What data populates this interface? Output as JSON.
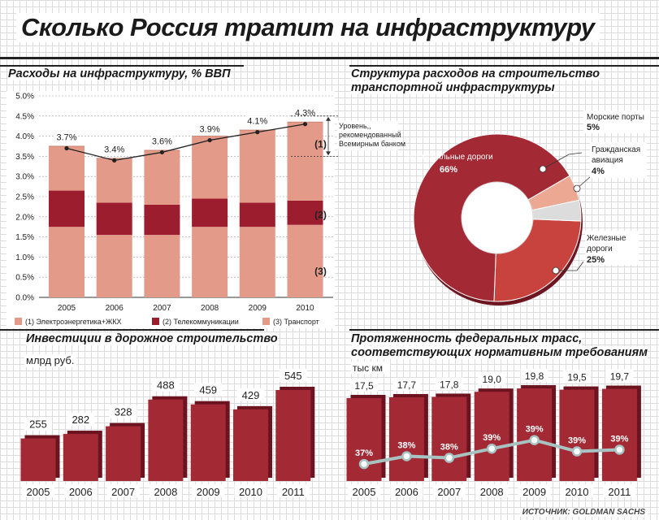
{
  "title": "Сколько Россия тратит на инфраструктуру",
  "source": "ИСТОЧНИК: GOLDMAN SACHS",
  "colors": {
    "transport": "#e49a88",
    "telecom": "#9c1e2e",
    "dark_red": "#a32a35",
    "red": "#c8433e",
    "light_salmon": "#eda894",
    "pale": "#dcdcdc",
    "line": "#a8c2c2"
  },
  "chart_data": [
    {
      "type": "bar",
      "stacked": true,
      "title": "Расходы на инфраструктуру, % ВВП",
      "categories": [
        "2005",
        "2006",
        "2007",
        "2008",
        "2009",
        "2010"
      ],
      "ylim": [
        0,
        5
      ],
      "yticks": [
        "0.0%",
        "0.5%",
        "1.0%",
        "1.5%",
        "2.0%",
        "2.5%",
        "3.0%",
        "3.5%",
        "4.0%",
        "4.5%",
        "5.0%"
      ],
      "series": [
        {
          "name": "(3) Транспорт",
          "values": [
            1.75,
            1.55,
            1.55,
            1.75,
            1.75,
            1.8
          ]
        },
        {
          "name": "(2)  Телекоммуникации",
          "values": [
            0.9,
            0.8,
            0.75,
            0.7,
            0.6,
            0.6
          ]
        },
        {
          "name": "(1) Электроэнергетика+ЖКХ",
          "values": [
            1.1,
            1.1,
            1.35,
            1.55,
            1.8,
            1.95
          ]
        }
      ],
      "totals_line": [
        3.7,
        3.4,
        3.6,
        3.9,
        4.1,
        4.3
      ],
      "point_labels": [
        "3.7%",
        "3.4%",
        "3.6%",
        "3.9%",
        "4.1%",
        "4.3%"
      ],
      "bar_markers": [
        "(1)",
        "(2)",
        "(3)"
      ],
      "annotation": "Уровень, рекомендованный Всемирным банком",
      "annotation_range": [
        3.5,
        4.5
      ]
    },
    {
      "type": "pie",
      "donut": true,
      "title": "Структура расходов на строительство транспортной инфраструктуры",
      "slices": [
        {
          "label": "Автомобильные дороги",
          "value": 66,
          "value_label": "66%"
        },
        {
          "label": "Морские порты",
          "value": 5,
          "value_label": "5%"
        },
        {
          "label": "Гражданская авиация",
          "value": 4,
          "value_label": "4%"
        },
        {
          "label": "Железные дороги",
          "value": 25,
          "value_label": "25%"
        }
      ]
    },
    {
      "type": "bar",
      "title": "Инвестиции в дорожное строительство",
      "ylabel": "млрд руб.",
      "categories": [
        "2005",
        "2006",
        "2007",
        "2008",
        "2009",
        "2010",
        "2011"
      ],
      "values": [
        255,
        282,
        328,
        488,
        459,
        429,
        545
      ]
    },
    {
      "type": "bar",
      "title": "Протяженность федеральных трасс, соответствующих нормативным требованиям",
      "ylabel": "тыс км",
      "categories": [
        "2005",
        "2006",
        "2007",
        "2008",
        "2009",
        "2010",
        "2011"
      ],
      "values": [
        17.5,
        17.7,
        17.8,
        19.0,
        19.8,
        19.5,
        19.7
      ],
      "value_labels": [
        "17,5",
        "17,7",
        "17,8",
        "19,0",
        "19,8",
        "19,5",
        "19,7"
      ],
      "line_values": [
        37,
        38,
        38,
        39,
        39,
        39,
        39
      ],
      "line_labels": [
        "37%",
        "38%",
        "38%",
        "39%",
        "39%",
        "39%",
        "39%"
      ],
      "line_y": [
        34.5,
        36.8,
        36.3,
        39.0,
        41.5,
        38.2,
        38.7
      ]
    }
  ]
}
